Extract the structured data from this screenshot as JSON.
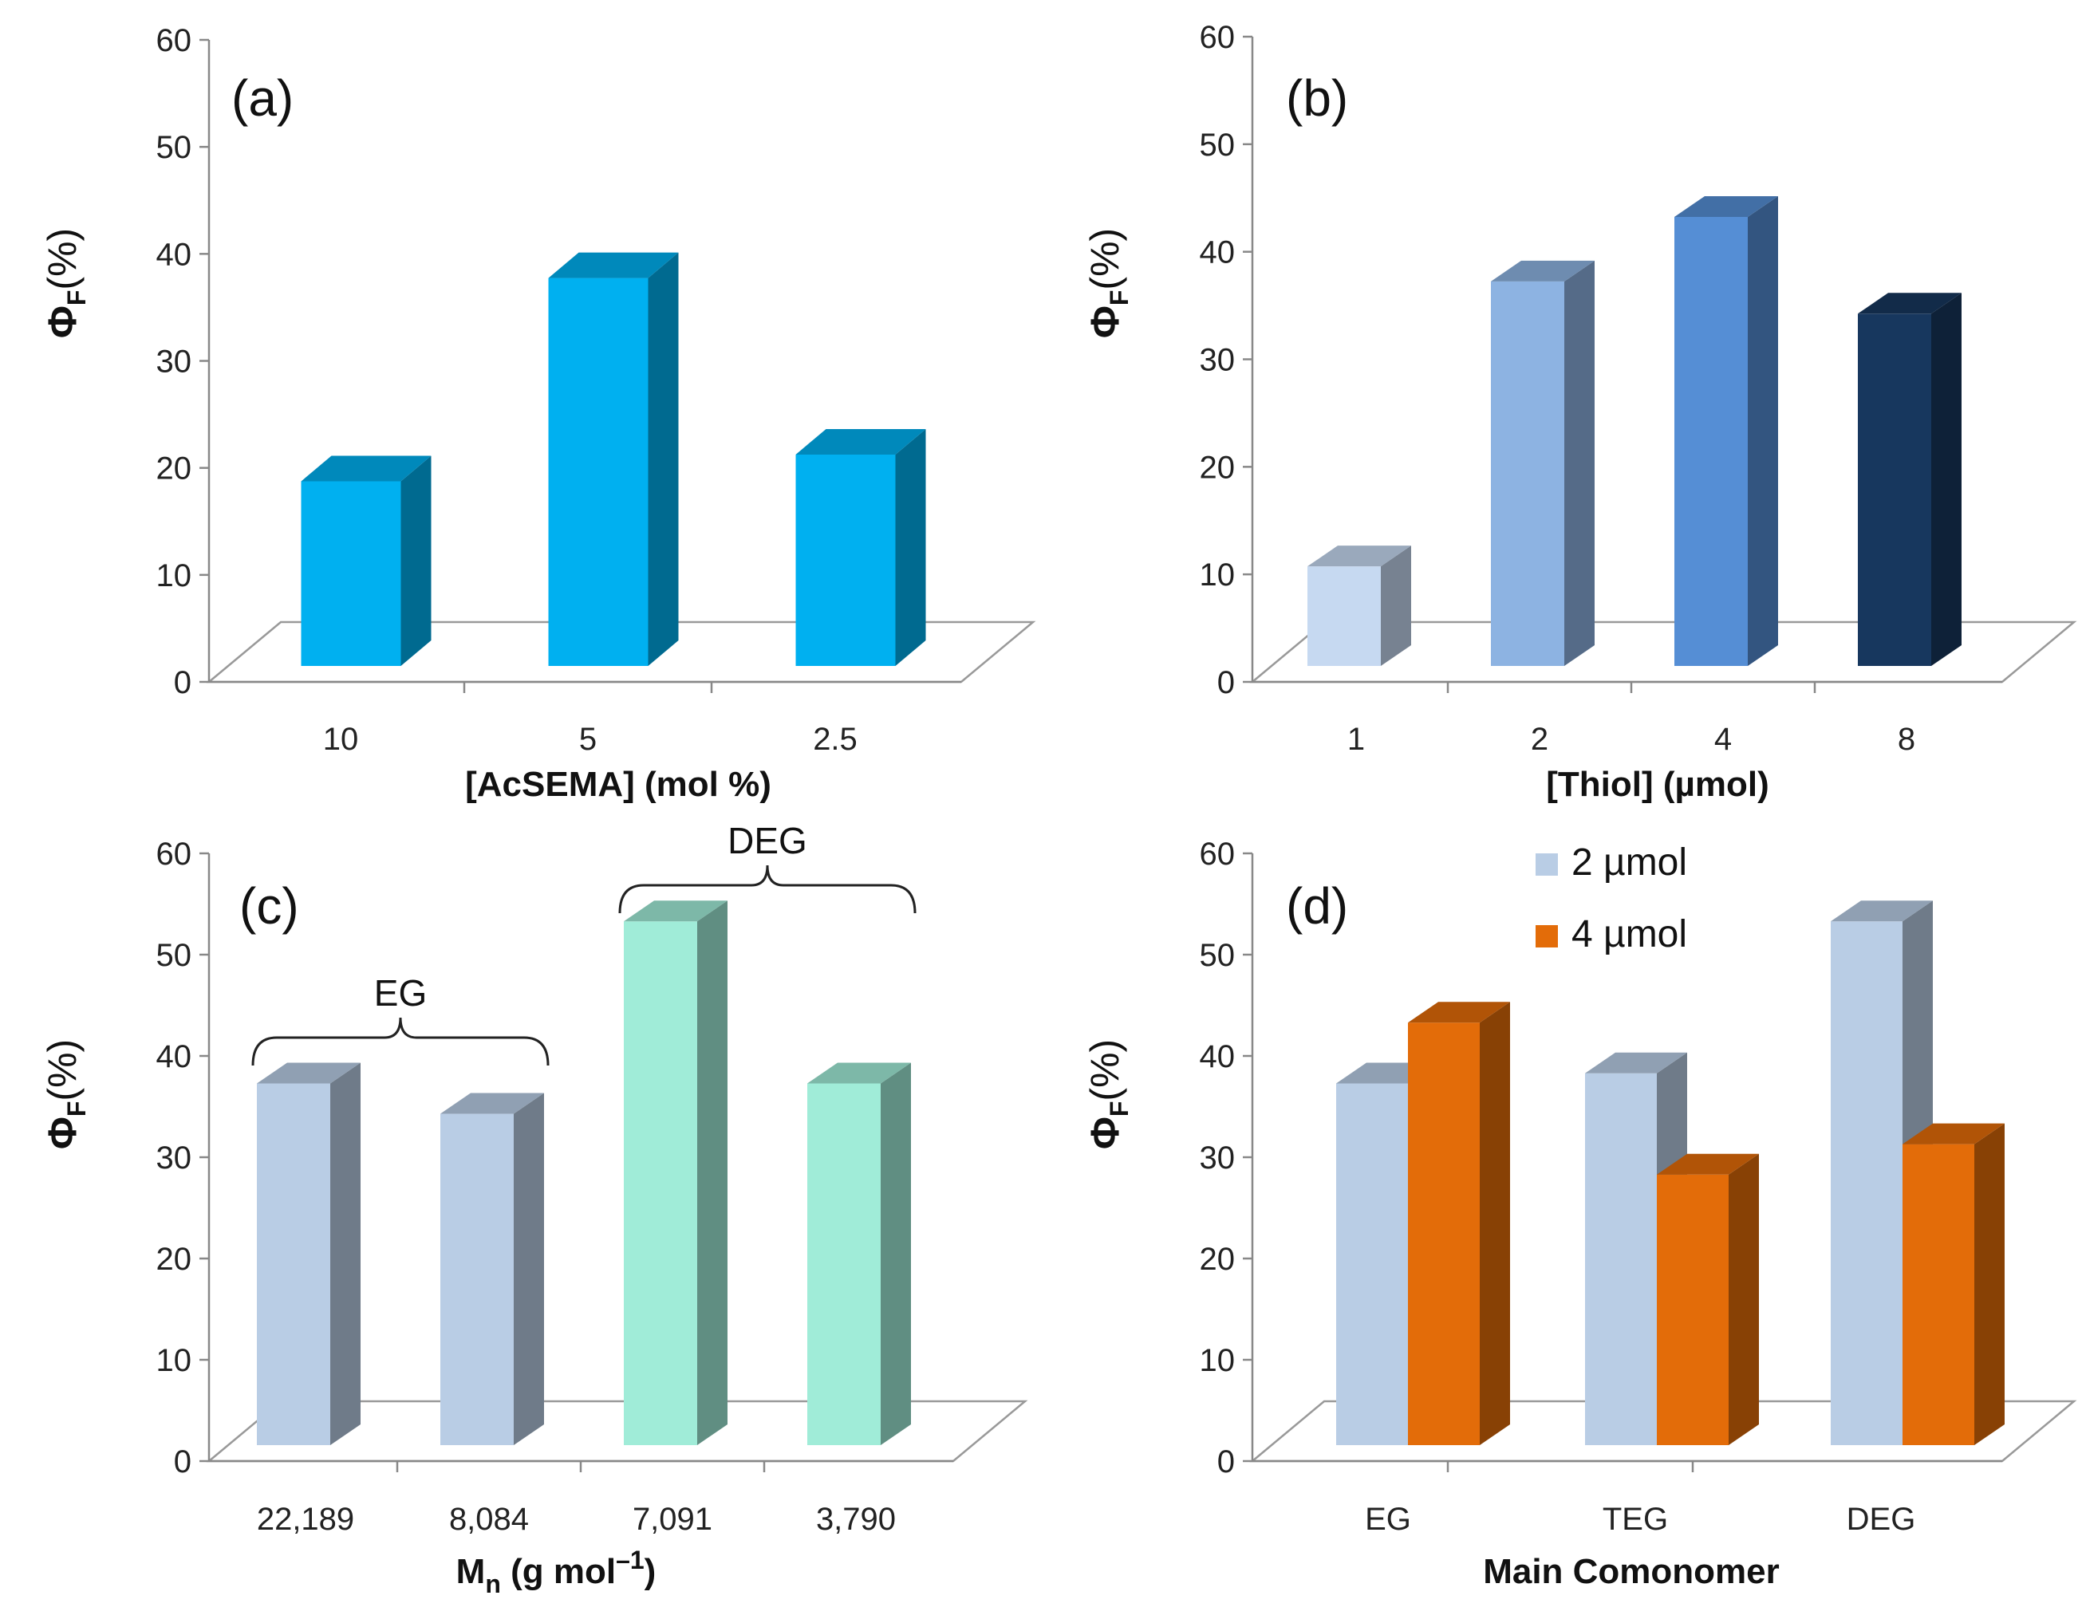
{
  "figure": {
    "panels": [
      "(a)",
      "(b)",
      "(c)",
      "(d)"
    ]
  },
  "chart_data": [
    {
      "type": "bar",
      "panel": "(a)",
      "categories": [
        "10",
        "5",
        "2.5"
      ],
      "values": [
        18,
        37,
        20.5
      ],
      "bar_colors": [
        "#00b0f0",
        "#00b0f0",
        "#00b0f0"
      ],
      "xlabel": "[AcSEMA] (mol %)",
      "ylabel": {
        "symbol": "Φ",
        "subscript": "F",
        "unit": "(%)"
      },
      "ylim": [
        0,
        60
      ],
      "yticks": [
        "0",
        "10",
        "20",
        "30",
        "40",
        "50",
        "60"
      ]
    },
    {
      "type": "bar",
      "panel": "(b)",
      "categories": [
        "1",
        "2",
        "4",
        "8"
      ],
      "values": [
        10,
        36.5,
        42.5,
        33.5
      ],
      "bar_colors": [
        "#c6d9f1",
        "#8db3e2",
        "#558ed5",
        "#17375e"
      ],
      "xlabel": "[Thiol] (µmol)",
      "ylabel": {
        "symbol": "Φ",
        "subscript": "F",
        "unit": "(%)"
      },
      "ylim": [
        0,
        60
      ],
      "yticks": [
        "0",
        "10",
        "20",
        "30",
        "40",
        "50",
        "60"
      ]
    },
    {
      "type": "bar",
      "panel": "(c)",
      "categories": [
        "22,189",
        "8,084",
        "7,091",
        "3,790"
      ],
      "values": [
        36.5,
        33.5,
        52.5,
        36.5
      ],
      "bar_colors": [
        "#b9cde5",
        "#b9cde5",
        "#a0ecd8",
        "#a0ecd8"
      ],
      "groups": [
        {
          "label": "EG",
          "from": 0,
          "to": 1
        },
        {
          "label": "DEG",
          "from": 2,
          "to": 3
        }
      ],
      "xlabel": {
        "main": "M",
        "subscript": "n",
        "rest": " (g mol",
        "superscript": "–1",
        "end": ")"
      },
      "ylabel": {
        "symbol": "Φ",
        "subscript": "F",
        "unit": "(%)"
      },
      "ylim": [
        0,
        60
      ],
      "yticks": [
        "0",
        "10",
        "20",
        "30",
        "40",
        "50",
        "60"
      ]
    },
    {
      "type": "bar",
      "panel": "(d)",
      "categories": [
        "EG",
        "TEG",
        "DEG"
      ],
      "series": [
        {
          "name": "2 µmol",
          "color": "#b9cde5",
          "values": [
            36.5,
            37.5,
            52.5
          ]
        },
        {
          "name": "4 µmol",
          "color": "#e36c09",
          "values": [
            42.5,
            27.5,
            30.5
          ]
        }
      ],
      "xlabel": "Main Comonomer",
      "ylabel": {
        "symbol": "Φ",
        "subscript": "F",
        "unit": "(%)"
      },
      "ylim": [
        0,
        60
      ],
      "yticks": [
        "0",
        "10",
        "20",
        "30",
        "40",
        "50",
        "60"
      ],
      "legend": "top-center"
    }
  ]
}
